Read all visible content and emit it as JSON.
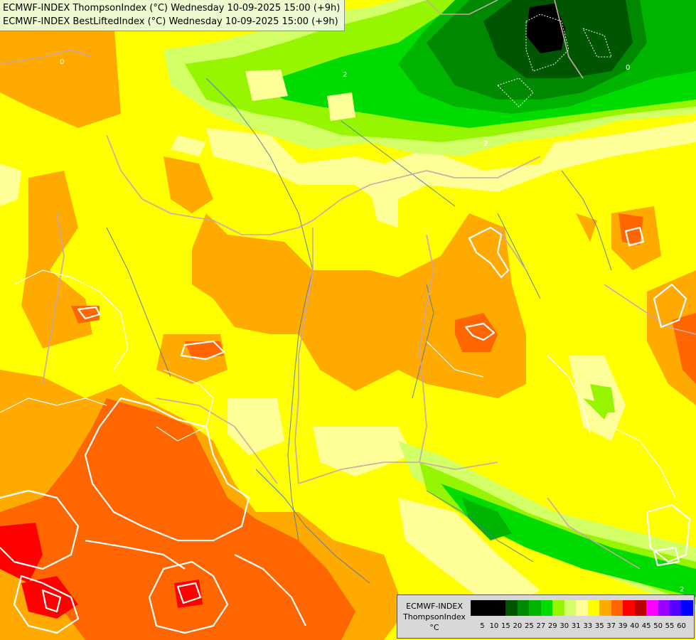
{
  "header": {
    "line1": "ECMWF-INDEX ThompsonIndex (°C) Wednesday 10-09-2025 15:00 (+9h)",
    "line2": "ECMWF-INDEX BestLiftedIndex (°C) Wednesday 10-09-2025 15:00 (+9h)"
  },
  "legend": {
    "title_line1": "ECMWF-INDEX",
    "title_line2": "ThompsonIndex",
    "title_line3": "°C",
    "ticks": [
      "5",
      "10",
      "15",
      "20",
      "25",
      "27",
      "29",
      "30",
      "31",
      "33",
      "35",
      "37",
      "39",
      "40",
      "45",
      "50",
      "55",
      "60"
    ],
    "colors": [
      "#000000",
      "#000000",
      "#000000",
      "#005500",
      "#008800",
      "#00b400",
      "#00dc00",
      "#96f500",
      "#d2ff66",
      "#ffff99",
      "#ffff00",
      "#ffaa00",
      "#ff6600",
      "#ff0000",
      "#bb0000",
      "#ff00ff",
      "#9900ff",
      "#5500ff",
      "#0000ff"
    ]
  },
  "map": {
    "contour_labels": [
      "2",
      "2",
      "2",
      "0",
      "0"
    ]
  }
}
